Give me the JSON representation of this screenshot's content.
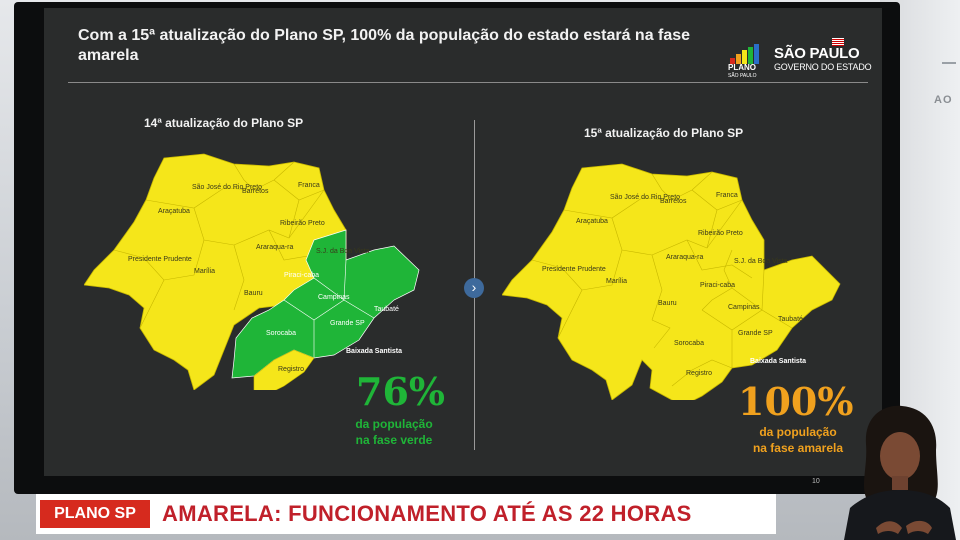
{
  "slide": {
    "title": "Com a 15ª atualização do Plano SP, 100% da população do estado estará na fase amarela",
    "slide_number": "10",
    "logos": {
      "plano_main": "PLANO",
      "plano_sub": "SÃO PAULO",
      "sp_main": "SÃO PAULO",
      "sp_sub": "GOVERNO DO ESTADO"
    },
    "left_map": {
      "heading": "14ª atualização do Plano SP",
      "stat": "76%",
      "stat_desc_line1": "da população",
      "stat_desc_line2": "na fase verde",
      "stat_color": "#1fb538"
    },
    "right_map": {
      "heading": "15ª atualização do Plano SP",
      "stat": "100%",
      "stat_desc_line1": "da população",
      "stat_desc_line2": "na fase amarela",
      "stat_color": "#f0a11e"
    },
    "regions_left": {
      "sjrp": "São José do Rio Preto",
      "barretos": "Barretos",
      "franca": "Franca",
      "aracatuba": "Araçatuba",
      "ribeirao": "Ribeirão Preto",
      "araraquara": "Araraqua-ra",
      "presidente": "Presidente Prudente",
      "marilia": "Marília",
      "sjbv": "S.J. da Boa Vista",
      "piracicaba": "Piraci-caba",
      "bauru": "Bauru",
      "campinas": "Campinas",
      "taubate": "Taubaté",
      "sorocaba": "Sorocaba",
      "grande_sp": "Grande SP",
      "baixada": "Baixada Santista",
      "registro": "Registro"
    },
    "regions_right": {
      "sjrp": "São José do Rio Preto",
      "barretos": "Barretos",
      "franca": "Franca",
      "aracatuba": "Araçatuba",
      "ribeirao": "Ribeirão Preto",
      "araraquara": "Araraqua-ra",
      "presidente": "Presidente Prudente",
      "marilia": "Marília",
      "sjbv": "S.J. da Boa Vista",
      "piracicaba": "Piraci-caba",
      "bauru": "Bauru",
      "campinas": "Campinas",
      "taubate": "Taubaté",
      "sorocaba": "Sorocaba",
      "grande_sp": "Grande SP",
      "baixada": "Baixada Santista",
      "registro": "Registro"
    },
    "colors": {
      "yellow_phase": "#f5e61a",
      "green_phase": "#1fb538"
    }
  },
  "lower_third": {
    "badge": "PLANO SP",
    "headline": "AMARELA: FUNCIONAMENTO ATÉ AS 22 HORAS"
  },
  "studio": {
    "wall_text": "AO"
  }
}
